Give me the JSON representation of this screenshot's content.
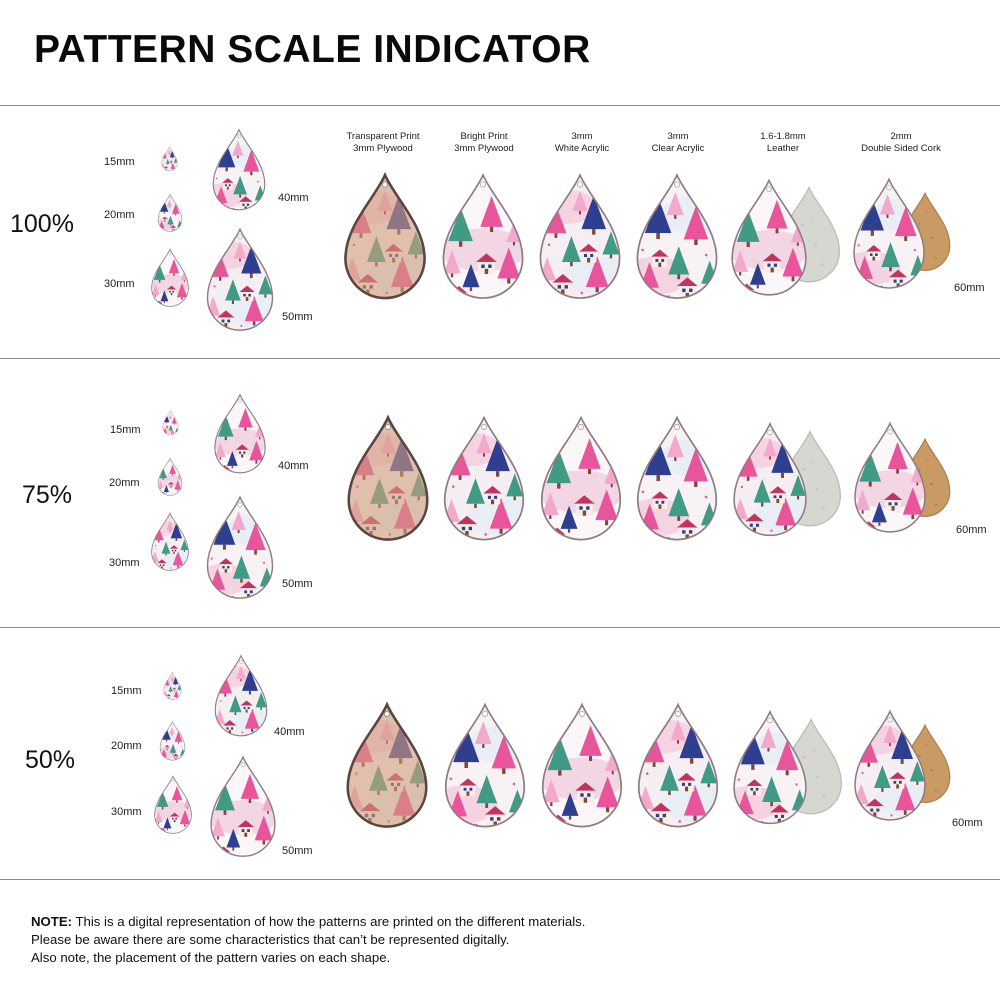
{
  "title": "PATTERN SCALE INDICATOR",
  "materials": [
    {
      "line1": "Transparent Print",
      "line2": "3mm Plywood"
    },
    {
      "line1": "Bright Print",
      "line2": "3mm Plywood"
    },
    {
      "line1": "3mm",
      "line2": "White Acrylic"
    },
    {
      "line1": "3mm",
      "line2": "Clear Acrylic"
    },
    {
      "line1": "1.6-1.8mm",
      "line2": "Leather"
    },
    {
      "line1": "2mm",
      "line2": "Double Sided Cork"
    }
  ],
  "rows": [
    {
      "scale": "100%",
      "sizes": {
        "s15": "15mm",
        "s20": "20mm",
        "s30": "30mm",
        "s40": "40mm",
        "s50": "50mm",
        "s60": "60mm"
      }
    },
    {
      "scale": "75%",
      "sizes": {
        "s15": "15mm",
        "s20": "20mm",
        "s30": "30mm",
        "s40": "40mm",
        "s50": "50mm",
        "s60": "60mm"
      }
    },
    {
      "scale": "50%",
      "sizes": {
        "s15": "15mm",
        "s20": "20mm",
        "s30": "30mm",
        "s40": "40mm",
        "s50": "50mm",
        "s60": "60mm"
      }
    }
  ],
  "note": {
    "label": "NOTE:",
    "line1": " This is a digital representation of how the patterns are printed on the different materials.",
    "line2": "Please be aware there are some characteristics that can’t be represented digitally.",
    "line3": "Also note, the placement of the pattern varies on each shape."
  },
  "colors": {
    "pink": "#e8559a",
    "light_pink": "#f3a9cb",
    "navy": "#2e3f8f",
    "teal": "#3f9a86",
    "wood": "#d9a98a",
    "cork": "#c99a63",
    "leather_back": "#d7d7d2",
    "snow": "#f4f1f2"
  }
}
